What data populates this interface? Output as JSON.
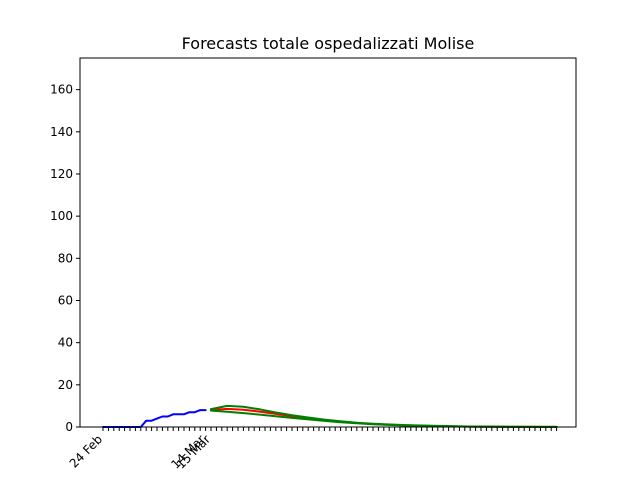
{
  "chart_data": {
    "type": "line",
    "title": "Forecasts totale ospedalizzati Molise",
    "xlabel": "",
    "ylabel": "",
    "x_axis": {
      "type": "date",
      "start": "2020-02-24",
      "end": "2020-05-18",
      "labeled_ticks": [
        "24 Feb",
        "14 Mar",
        "15 Mar"
      ],
      "labeled_tick_dates": [
        "2020-02-24",
        "2020-03-14",
        "2020-03-15"
      ]
    },
    "ylim": [
      0,
      175
    ],
    "yticks": [
      0,
      20,
      40,
      60,
      80,
      100,
      120,
      140,
      160
    ],
    "grid": false,
    "legend": "none",
    "series": [
      {
        "role": "observed",
        "color": "#0000ff",
        "x": [
          "2020-02-24",
          "2020-02-25",
          "2020-02-26",
          "2020-02-27",
          "2020-02-28",
          "2020-02-29",
          "2020-03-01",
          "2020-03-02",
          "2020-03-03",
          "2020-03-04",
          "2020-03-05",
          "2020-03-06",
          "2020-03-07",
          "2020-03-08",
          "2020-03-09",
          "2020-03-10",
          "2020-03-11",
          "2020-03-12",
          "2020-03-13",
          "2020-03-14"
        ],
        "values": [
          0,
          0,
          0,
          0,
          0,
          0,
          0,
          0,
          3,
          3,
          4,
          5,
          5,
          6,
          6,
          6,
          7,
          7,
          8,
          8
        ]
      },
      {
        "role": "forecast",
        "color": "#ff0000",
        "x": [
          "2020-03-15",
          "2020-03-18",
          "2020-03-21",
          "2020-03-24",
          "2020-03-27",
          "2020-03-30",
          "2020-04-02",
          "2020-04-05",
          "2020-04-08",
          "2020-04-11",
          "2020-04-14",
          "2020-04-20",
          "2020-04-26",
          "2020-05-02",
          "2020-05-08",
          "2020-05-14",
          "2020-05-18"
        ],
        "values": [
          8.0,
          8.6,
          8.2,
          7.3,
          6.2,
          5.1,
          4.1,
          3.2,
          2.5,
          1.9,
          1.4,
          0.8,
          0.4,
          0.2,
          0.1,
          0.05,
          0.03
        ]
      },
      {
        "role": "upper-bound",
        "color": "#008000",
        "x": [
          "2020-03-15",
          "2020-03-18",
          "2020-03-21",
          "2020-03-24",
          "2020-03-27",
          "2020-03-30",
          "2020-04-02",
          "2020-04-05",
          "2020-04-08",
          "2020-04-11",
          "2020-04-14",
          "2020-04-20",
          "2020-04-26",
          "2020-05-02",
          "2020-05-08",
          "2020-05-14",
          "2020-05-18"
        ],
        "values": [
          8.5,
          10.0,
          9.6,
          8.4,
          6.9,
          5.6,
          4.5,
          3.5,
          2.7,
          2.0,
          1.5,
          0.9,
          0.5,
          0.25,
          0.12,
          0.06,
          0.04
        ]
      },
      {
        "role": "lower-bound",
        "color": "#008000",
        "x": [
          "2020-03-15",
          "2020-03-18",
          "2020-03-21",
          "2020-03-24",
          "2020-03-27",
          "2020-03-30",
          "2020-04-02",
          "2020-04-05",
          "2020-04-08",
          "2020-04-11",
          "2020-04-14",
          "2020-04-20",
          "2020-04-26",
          "2020-05-02",
          "2020-05-08",
          "2020-05-14",
          "2020-05-18"
        ],
        "values": [
          7.8,
          7.2,
          6.6,
          5.9,
          5.1,
          4.3,
          3.6,
          2.9,
          2.3,
          1.8,
          1.3,
          0.7,
          0.35,
          0.17,
          0.08,
          0.04,
          0.02
        ]
      }
    ]
  }
}
